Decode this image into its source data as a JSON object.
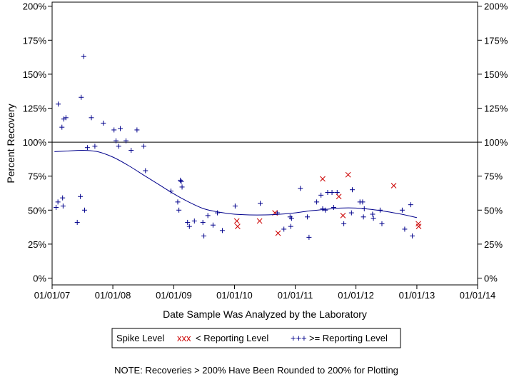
{
  "chart_data": {
    "type": "scatter",
    "title": "",
    "xlabel": "Date Sample Was Analyzed by the Laboratory",
    "ylabel": "Percent Recovery",
    "note": "NOTE: Recoveries > 200% Have Been Rounded to 200% for Plotting",
    "x_ticks": [
      "01/01/07",
      "01/01/08",
      "01/01/09",
      "01/01/10",
      "01/01/11",
      "01/01/12",
      "01/01/13",
      "01/01/14"
    ],
    "xlim": [
      "2007-01-01",
      "2014-01-01"
    ],
    "y_ticks": [
      "0%",
      "25%",
      "50%",
      "75%",
      "100%",
      "125%",
      "150%",
      "175%",
      "200%"
    ],
    "y_tick_values": [
      0,
      25,
      50,
      75,
      100,
      125,
      150,
      175,
      200
    ],
    "ylim": [
      -5,
      203
    ],
    "reference_line": 100,
    "legend": {
      "title": "Spike Level",
      "placement": "bottom-center",
      "entries": [
        {
          "marker": "xxx",
          "label": "< Reporting Level",
          "color": "#cc0000"
        },
        {
          "marker": "+++",
          "label": ">= Reporting Level",
          "color": "#00008b"
        }
      ]
    },
    "series": [
      {
        "name": ">= Reporting Level",
        "marker": "plus",
        "color": "#00008b",
        "points": [
          [
            "2007-01-25",
            52
          ],
          [
            "2007-02-05",
            56
          ],
          [
            "2007-02-07",
            128
          ],
          [
            "2007-03-05",
            59
          ],
          [
            "2007-03-01",
            111
          ],
          [
            "2007-03-08",
            53
          ],
          [
            "2007-03-12",
            117
          ],
          [
            "2007-03-25",
            118
          ],
          [
            "2007-06-01",
            41
          ],
          [
            "2007-06-20",
            60
          ],
          [
            "2007-06-25",
            133
          ],
          [
            "2007-07-10",
            163
          ],
          [
            "2007-07-15",
            50
          ],
          [
            "2007-08-01",
            96
          ],
          [
            "2007-08-25",
            118
          ],
          [
            "2007-09-15",
            97
          ],
          [
            "2007-11-05",
            114
          ],
          [
            "2008-01-08",
            109
          ],
          [
            "2008-01-20",
            101
          ],
          [
            "2008-02-05",
            97
          ],
          [
            "2008-02-15",
            110
          ],
          [
            "2008-03-20",
            101
          ],
          [
            "2008-04-20",
            94
          ],
          [
            "2008-05-25",
            109
          ],
          [
            "2008-07-05",
            97
          ],
          [
            "2008-07-15",
            79
          ],
          [
            "2008-12-15",
            64
          ],
          [
            "2009-01-25",
            56
          ],
          [
            "2009-02-01",
            50
          ],
          [
            "2009-02-10",
            72
          ],
          [
            "2009-02-15",
            71
          ],
          [
            "2009-02-20",
            67
          ],
          [
            "2009-03-25",
            41
          ],
          [
            "2009-04-05",
            38
          ],
          [
            "2009-05-05",
            42
          ],
          [
            "2009-06-25",
            41
          ],
          [
            "2009-07-01",
            31
          ],
          [
            "2009-07-25",
            46
          ],
          [
            "2009-08-25",
            39
          ],
          [
            "2009-09-20",
            48
          ],
          [
            "2009-10-20",
            35
          ],
          [
            "2010-01-05",
            53
          ],
          [
            "2010-06-05",
            55
          ],
          [
            "2010-09-15",
            48
          ],
          [
            "2010-10-25",
            36
          ],
          [
            "2010-12-01",
            45
          ],
          [
            "2010-12-05",
            38
          ],
          [
            "2010-12-10",
            44
          ],
          [
            "2011-02-01",
            66
          ],
          [
            "2011-03-15",
            45
          ],
          [
            "2011-03-25",
            30
          ],
          [
            "2011-05-10",
            56
          ],
          [
            "2011-06-05",
            61
          ],
          [
            "2011-06-15",
            51
          ],
          [
            "2011-07-01",
            50
          ],
          [
            "2011-07-15",
            63
          ],
          [
            "2011-08-10",
            63
          ],
          [
            "2011-08-20",
            52
          ],
          [
            "2011-09-10",
            63
          ],
          [
            "2011-10-20",
            40
          ],
          [
            "2011-12-05",
            48
          ],
          [
            "2011-12-10",
            65
          ],
          [
            "2012-01-25",
            56
          ],
          [
            "2012-02-10",
            56
          ],
          [
            "2012-02-15",
            45
          ],
          [
            "2012-02-20",
            51
          ],
          [
            "2012-04-10",
            47
          ],
          [
            "2012-04-15",
            44
          ],
          [
            "2012-05-25",
            50
          ],
          [
            "2012-06-05",
            40
          ],
          [
            "2012-10-05",
            50
          ],
          [
            "2012-10-20",
            36
          ],
          [
            "2012-11-25",
            54
          ],
          [
            "2012-12-05",
            31
          ]
        ]
      },
      {
        "name": "< Reporting Level",
        "marker": "x",
        "color": "#cc0000",
        "points": [
          [
            "2010-01-15",
            42
          ],
          [
            "2010-01-20",
            38
          ],
          [
            "2010-06-01",
            42
          ],
          [
            "2010-09-01",
            48
          ],
          [
            "2010-09-20",
            33
          ],
          [
            "2011-06-15",
            73
          ],
          [
            "2011-09-20",
            60
          ],
          [
            "2011-10-15",
            46
          ],
          [
            "2011-11-15",
            76
          ],
          [
            "2012-08-15",
            68
          ],
          [
            "2013-01-10",
            40
          ],
          [
            "2013-01-12",
            38
          ]
        ]
      }
    ],
    "trend_line": {
      "color": "#00008b",
      "points": [
        [
          "2007-01-15",
          93
        ],
        [
          "2007-04-01",
          93.5
        ],
        [
          "2007-07-01",
          94
        ],
        [
          "2007-10-01",
          93
        ],
        [
          "2008-01-01",
          89
        ],
        [
          "2008-04-01",
          83
        ],
        [
          "2008-07-01",
          76
        ],
        [
          "2008-10-01",
          69
        ],
        [
          "2009-01-01",
          62
        ],
        [
          "2009-04-01",
          56
        ],
        [
          "2009-07-01",
          51
        ],
        [
          "2009-10-01",
          48.5
        ],
        [
          "2010-01-01",
          47
        ],
        [
          "2010-04-01",
          46.5
        ],
        [
          "2010-07-01",
          46.5
        ],
        [
          "2010-10-01",
          47
        ],
        [
          "2011-01-01",
          48
        ],
        [
          "2011-04-01",
          49.5
        ],
        [
          "2011-07-01",
          50.5
        ],
        [
          "2011-10-01",
          51.5
        ],
        [
          "2012-01-01",
          51.5
        ],
        [
          "2012-04-01",
          50.5
        ],
        [
          "2012-07-01",
          49
        ],
        [
          "2012-10-01",
          47
        ],
        [
          "2013-01-01",
          44.5
        ]
      ]
    }
  }
}
